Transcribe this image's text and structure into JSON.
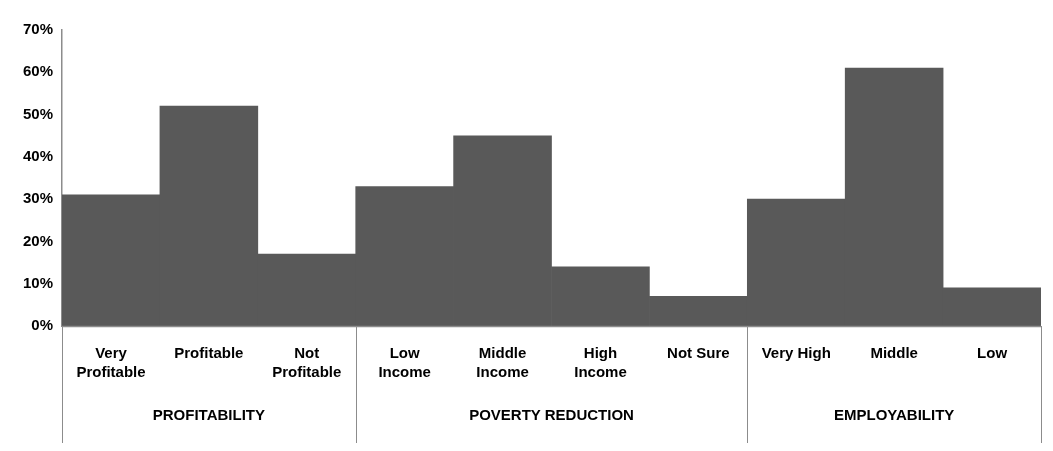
{
  "chart_data": {
    "type": "bar",
    "categories": [
      "Very Profitable",
      "Profitable",
      "Not Profitable",
      "Low Income",
      "Middle Income",
      "High Income",
      "Not Sure",
      "Very High",
      "Middle",
      "Low"
    ],
    "values": [
      31,
      52,
      17,
      33,
      45,
      14,
      7,
      30,
      61,
      9
    ],
    "color": "#595959",
    "ylim": [
      0,
      70
    ],
    "yticks": [
      {
        "value": 0,
        "label": "0%"
      },
      {
        "value": 10,
        "label": "10%"
      },
      {
        "value": 20,
        "label": "20%"
      },
      {
        "value": 30,
        "label": "30%"
      },
      {
        "value": 40,
        "label": "40%"
      },
      {
        "value": 50,
        "label": "50%"
      },
      {
        "value": 60,
        "label": "60%"
      },
      {
        "value": 70,
        "label": "70%"
      }
    ],
    "grid": false,
    "legend": false,
    "annotations": [
      "PROFITABILITY",
      "POVERTY REDUCTION",
      "EMPLOYABILITY"
    ]
  }
}
